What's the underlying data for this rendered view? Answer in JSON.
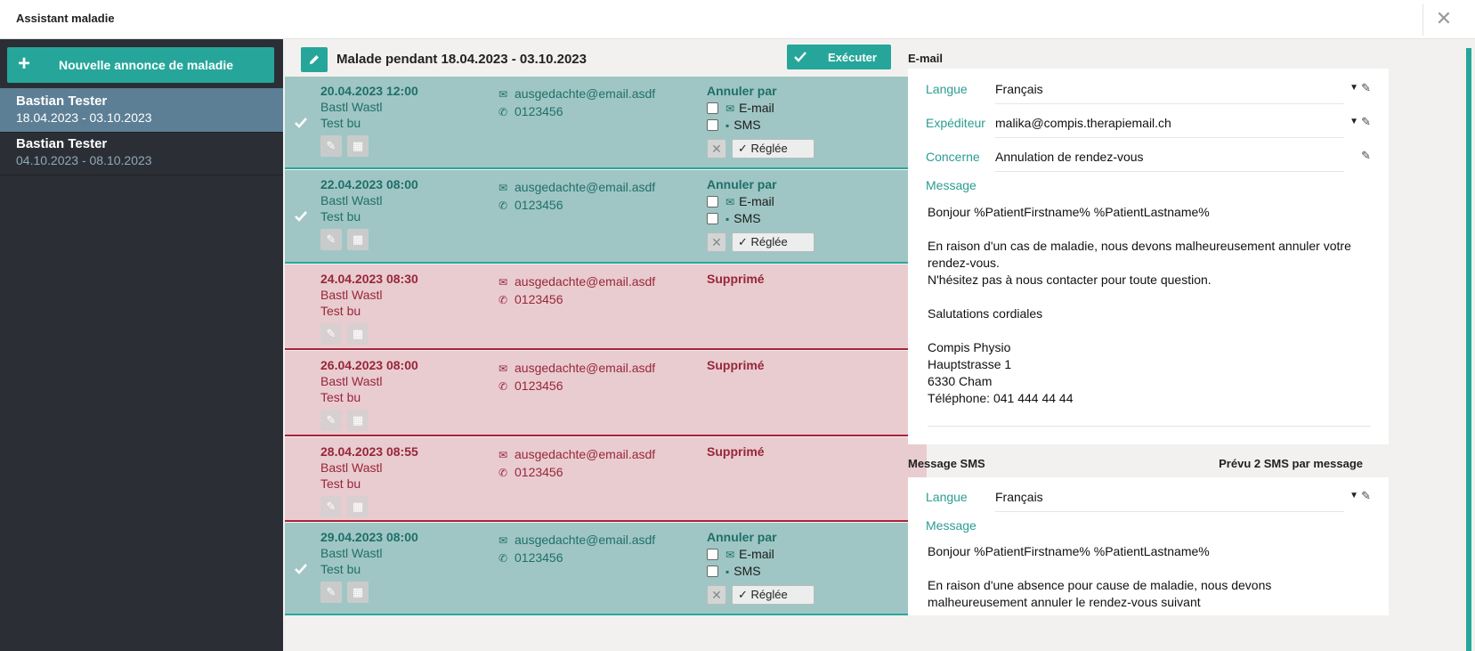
{
  "window": {
    "title": "Assistant maladie",
    "close_glyph": "✕"
  },
  "sidebar": {
    "new_button": "Nouvelle annonce de maladie",
    "items": [
      {
        "name": "Bastian Tester",
        "dates": "18.04.2023 - 03.10.2023",
        "active": true
      },
      {
        "name": "Bastian Tester",
        "dates": "04.10.2023 - 08.10.2023",
        "active": false
      }
    ]
  },
  "main": {
    "title": "Malade pendant 18.04.2023 - 03.10.2023",
    "execute_label": "Exécuter",
    "cancel_by_label": "Annuler par",
    "email_label": "E-mail",
    "sms_label": "SMS",
    "settled_label": "Réglée",
    "deleted_label": "Supprimé",
    "appointments": [
      {
        "datetime": "20.04.2023 12:00",
        "patient": "Bastl Wastl",
        "type": "Test bu",
        "email": "ausgedachte@email.asdf",
        "phone": "0123456",
        "status": "ok"
      },
      {
        "datetime": "22.04.2023 08:00",
        "patient": "Bastl Wastl",
        "type": "Test bu",
        "email": "ausgedachte@email.asdf",
        "phone": "0123456",
        "status": "ok"
      },
      {
        "datetime": "24.04.2023 08:30",
        "patient": "Bastl Wastl",
        "type": "Test bu",
        "email": "ausgedachte@email.asdf",
        "phone": "0123456",
        "status": "deleted"
      },
      {
        "datetime": "26.04.2023 08:00",
        "patient": "Bastl Wastl",
        "type": "Test bu",
        "email": "ausgedachte@email.asdf",
        "phone": "0123456",
        "status": "deleted"
      },
      {
        "datetime": "28.04.2023 08:55",
        "patient": "Bastl Wastl",
        "type": "Test bu",
        "email": "ausgedachte@email.asdf",
        "phone": "0123456",
        "status": "deleted"
      },
      {
        "datetime": "29.04.2023 08:00",
        "patient": "Bastl Wastl",
        "type": "Test bu",
        "email": "ausgedachte@email.asdf",
        "phone": "0123456",
        "status": "ok"
      }
    ]
  },
  "email": {
    "heading": "E-mail",
    "language_label": "Langue",
    "language_value": "Français",
    "sender_label": "Expéditeur",
    "sender_value": "malika@compis.therapiemail.ch",
    "subject_label": "Concerne",
    "subject_value": "Annulation de rendez-vous",
    "message_label": "Message",
    "message_text": "Bonjour %PatientFirstname% %PatientLastname%\n\nEn raison d'un cas de maladie, nous devons malheureusement annuler votre rendez-vous.\nN'hésitez pas à nous contacter pour toute question.\n\nSalutations cordiales\n\nCompis Physio\nHauptstrasse 1\n6330 Cham\nTéléphone: 041 444 44 44"
  },
  "sms": {
    "heading": "Message SMS",
    "estimate": "Prévu 2 SMS par message",
    "language_label": "Langue",
    "language_value": "Français",
    "message_label": "Message",
    "message_text": "Bonjour %PatientFirstname% %PatientLastname%\n\nEn raison d'une absence pour cause de maladie, nous devons malheureusement annuler le rendez-vous suivant"
  },
  "colors": {
    "accent": "#26a69a",
    "ok_row": "#9fc6c4",
    "deleted_row": "#e9ccd0",
    "deleted_text": "#98263a"
  }
}
